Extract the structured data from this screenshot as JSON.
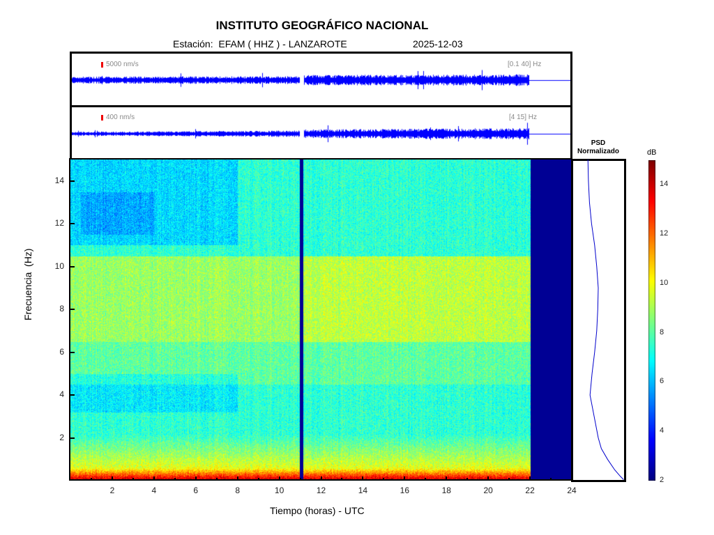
{
  "header": {
    "title": "INSTITUTO GEOGRÁFICO NACIONAL",
    "station": "Estación:  EFAM ( HHZ ) - LANZAROTE",
    "date": "2025-12-03"
  },
  "traces": [
    {
      "scale": "5000 nm/s",
      "band": "[0.1 40] Hz"
    },
    {
      "scale": "400 nm/s",
      "band": "[4 15] Hz"
    }
  ],
  "psd": {
    "title1": "PSD",
    "title2": "Normalizado"
  },
  "colors": {
    "trace": "#0000ff",
    "nodata": "#00007f",
    "scalebar": "#e00000"
  },
  "chart_data": {
    "type": "heatmap",
    "xlabel": "Tiempo (horas) - UTC",
    "ylabel": "Frecuencia  (Hz)",
    "xlim": [
      0,
      24
    ],
    "ylim": [
      0,
      15
    ],
    "xticks": [
      2,
      4,
      6,
      8,
      10,
      12,
      14,
      16,
      18,
      20,
      22,
      24
    ],
    "yticks": [
      2,
      4,
      6,
      8,
      10,
      12,
      14
    ],
    "data_end_hour": 22,
    "gap_hour": 11.05,
    "colorbar": {
      "label": "dB",
      "range": [
        2,
        15
      ],
      "ticks": [
        2,
        4,
        6,
        8,
        10,
        12,
        14
      ]
    },
    "psd_curve": {
      "freq": [
        15,
        14,
        13,
        12,
        11,
        10,
        9,
        8,
        7,
        6,
        5,
        4,
        3,
        2,
        1.5,
        1,
        0.5,
        0.2,
        0.05
      ],
      "value": [
        0.3,
        0.31,
        0.33,
        0.37,
        0.43,
        0.47,
        0.5,
        0.49,
        0.47,
        0.43,
        0.38,
        0.34,
        0.42,
        0.5,
        0.56,
        0.68,
        0.82,
        0.93,
        0.99
      ]
    }
  }
}
